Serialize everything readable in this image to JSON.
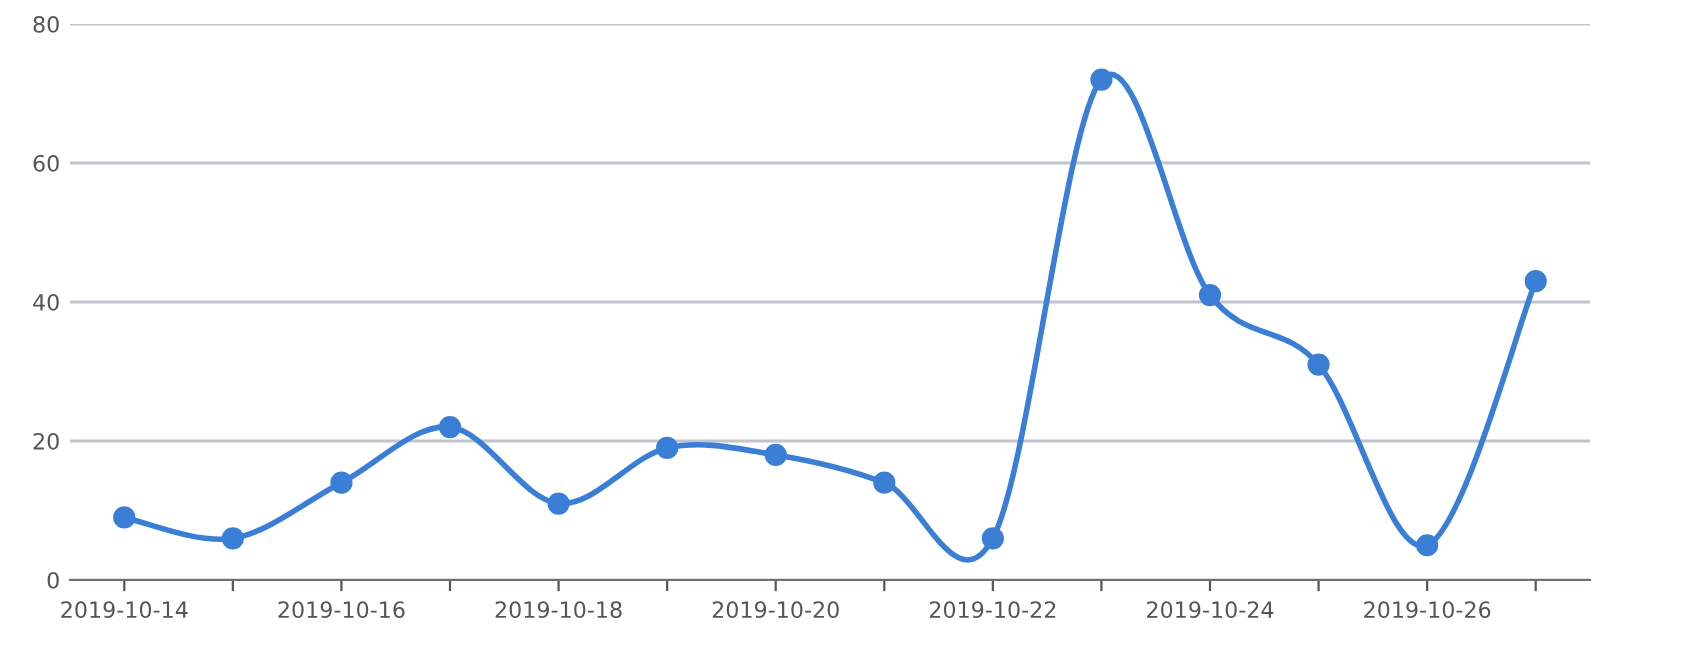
{
  "chart_data": {
    "type": "line",
    "categories": [
      "2019-10-14",
      null,
      "2019-10-16",
      null,
      "2019-10-18",
      null,
      "2019-10-20",
      null,
      "2019-10-22",
      null,
      "2019-10-24",
      null,
      "2019-10-26",
      null
    ],
    "series": [
      {
        "color": "#3a7fd5",
        "values": [
          9,
          6,
          14,
          22,
          11,
          19,
          18,
          14,
          6,
          72,
          41,
          31,
          5,
          43
        ]
      }
    ],
    "ylim": [
      0,
      80
    ],
    "yticks": [
      0,
      20,
      40,
      60,
      80
    ],
    "grid": "y",
    "marker": "circle",
    "line_style": "solid"
  }
}
